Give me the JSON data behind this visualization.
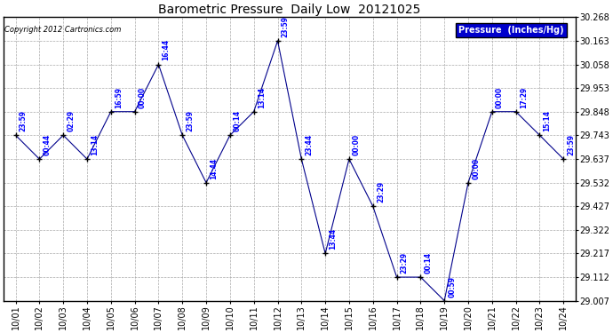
{
  "title": "Barometric Pressure  Daily Low  20121025",
  "copyright": "Copyright 2012 Cartronics.com",
  "legend_label": "Pressure  (Inches/Hg)",
  "dates": [
    "10/01",
    "10/02",
    "10/03",
    "10/04",
    "10/05",
    "10/06",
    "10/07",
    "10/08",
    "10/09",
    "10/10",
    "10/11",
    "10/12",
    "10/13",
    "10/14",
    "10/15",
    "10/16",
    "10/17",
    "10/18",
    "10/19",
    "10/20",
    "10/21",
    "10/22",
    "10/23",
    "10/24"
  ],
  "pressures": [
    29.743,
    29.637,
    29.743,
    29.637,
    29.848,
    29.848,
    30.058,
    29.743,
    29.532,
    29.743,
    29.848,
    30.163,
    29.637,
    29.217,
    29.637,
    29.427,
    29.112,
    29.112,
    29.007,
    29.532,
    29.848,
    29.848,
    29.743,
    29.637
  ],
  "times": [
    "23:59",
    "00:44",
    "02:29",
    "13:14",
    "16:59",
    "00:00",
    "16:44",
    "23:59",
    "14:44",
    "00:14",
    "13:14",
    "23:59",
    "23:44",
    "13:44",
    "00:00",
    "23:29",
    "23:29",
    "00:14",
    "00:59",
    "00:00",
    "00:00",
    "17:29",
    "15:14",
    "23:59"
  ],
  "ylim_min": 29.007,
  "ylim_max": 30.268,
  "yticks": [
    30.268,
    30.163,
    30.058,
    29.953,
    29.848,
    29.743,
    29.637,
    29.532,
    29.427,
    29.322,
    29.217,
    29.112,
    29.007
  ],
  "line_color": "#00008b",
  "marker_style": "+",
  "marker_color": "#000000",
  "bg_color": "#ffffff",
  "grid_color": "#aaaaaa",
  "label_color": "#0000ff",
  "title_color": "#000000",
  "copyright_color": "#000000",
  "legend_bg": "#0000cc",
  "legend_text_color": "#ffffff",
  "fig_width": 6.9,
  "fig_height": 3.75,
  "dpi": 100
}
